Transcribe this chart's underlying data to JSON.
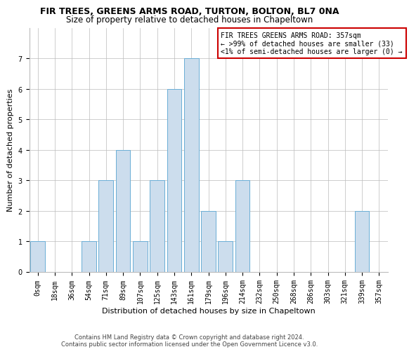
{
  "title1": "FIR TREES, GREENS ARMS ROAD, TURTON, BOLTON, BL7 0NA",
  "title2": "Size of property relative to detached houses in Chapeltown",
  "xlabel": "Distribution of detached houses by size in Chapeltown",
  "ylabel": "Number of detached properties",
  "footnote1": "Contains HM Land Registry data © Crown copyright and database right 2024.",
  "footnote2": "Contains public sector information licensed under the Open Government Licence v3.0.",
  "annotation_title": "FIR TREES GREENS ARMS ROAD: 357sqm",
  "annotation_line2": "← >99% of detached houses are smaller (33)",
  "annotation_line3": "<1% of semi-detached houses are larger (0) →",
  "bar_labels": [
    "0sqm",
    "18sqm",
    "36sqm",
    "54sqm",
    "71sqm",
    "89sqm",
    "107sqm",
    "125sqm",
    "143sqm",
    "161sqm",
    "179sqm",
    "196sqm",
    "214sqm",
    "232sqm",
    "250sqm",
    "268sqm",
    "286sqm",
    "303sqm",
    "321sqm",
    "339sqm",
    "357sqm"
  ],
  "bar_values": [
    1,
    0,
    0,
    1,
    3,
    4,
    1,
    3,
    6,
    7,
    2,
    1,
    3,
    0,
    0,
    0,
    0,
    0,
    0,
    2,
    0
  ],
  "bar_color": "#ccdded",
  "bar_edge_color": "#6aaed6",
  "annotation_box_edge": "#cc0000",
  "background_color": "#ffffff",
  "grid_color": "#bbbbbb",
  "ylim": [
    0,
    8
  ],
  "yticks": [
    0,
    1,
    2,
    3,
    4,
    5,
    6,
    7
  ],
  "title1_fontsize": 9,
  "title2_fontsize": 8.5,
  "ylabel_fontsize": 8,
  "xlabel_fontsize": 8,
  "tick_fontsize": 7,
  "annot_fontsize": 7,
  "footnote_fontsize": 6
}
